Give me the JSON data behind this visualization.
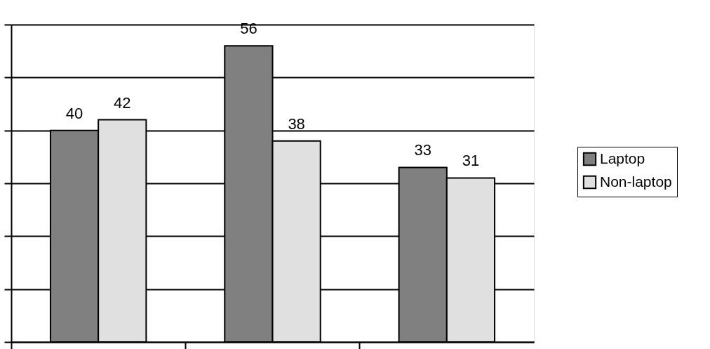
{
  "chart_data": {
    "type": "bar",
    "categories": [
      null,
      null,
      null
    ],
    "series": [
      {
        "name": "Laptop",
        "color": "#808080",
        "values": [
          40,
          56,
          33
        ]
      },
      {
        "name": "Non-laptop",
        "color": "#e0e0e0",
        "values": [
          42,
          38,
          31
        ]
      }
    ],
    "ylim": [
      0,
      60
    ],
    "yticks": [
      {
        "value": 0,
        "label": null
      },
      {
        "value": 10,
        "label": null
      },
      {
        "value": 20,
        "label": null
      },
      {
        "value": 30,
        "label": null
      },
      {
        "value": 40,
        "label": null
      },
      {
        "value": 50,
        "label": null
      },
      {
        "value": 60,
        "label": null
      }
    ],
    "grid": "y",
    "legend": "right",
    "tick_labels": false,
    "data_labels": true
  }
}
